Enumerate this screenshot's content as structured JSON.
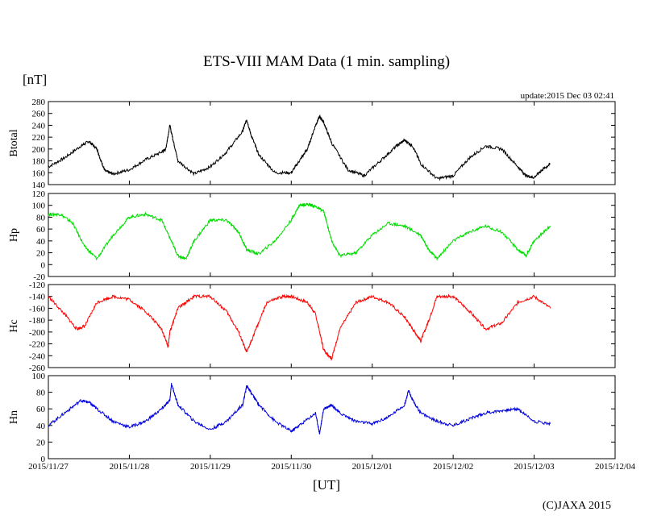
{
  "chart_data": {
    "type": "line",
    "title": "ETS-VIII MAM Data (1 min. sampling)",
    "unit_label": "[nT]",
    "update_text": "update:2015 Dec 03 02:41",
    "xlabel": "[UT]",
    "copyright": "(C)JAXA 2015",
    "x_tick_labels": [
      "2015/11/27",
      "2015/11/28",
      "2015/11/29",
      "2015/11/30",
      "2015/12/01",
      "2015/12/02",
      "2015/12/03",
      "2015/12/04"
    ],
    "x_unit": "days from 2015/11/27 00:00 UT",
    "xlim": [
      0,
      7
    ],
    "grid": false,
    "panels": [
      {
        "name": "Btotal",
        "color": "#000000",
        "ylim": [
          140,
          280
        ],
        "yticks": [
          140,
          160,
          180,
          200,
          220,
          240,
          260,
          280
        ],
        "x": [
          0.0,
          0.2,
          0.4,
          0.5,
          0.6,
          0.65,
          0.7,
          0.8,
          1.0,
          1.2,
          1.4,
          1.45,
          1.5,
          1.55,
          1.6,
          1.8,
          2.0,
          2.2,
          2.4,
          2.45,
          2.5,
          2.6,
          2.8,
          3.0,
          3.1,
          3.2,
          3.3,
          3.35,
          3.4,
          3.5,
          3.7,
          3.9,
          4.1,
          4.3,
          4.4,
          4.5,
          4.6,
          4.8,
          5.0,
          5.2,
          5.4,
          5.6,
          5.8,
          5.9,
          6.0,
          6.1,
          6.2
        ],
        "y": [
          170,
          185,
          205,
          213,
          200,
          180,
          163,
          158,
          165,
          182,
          195,
          200,
          240,
          210,
          180,
          158,
          170,
          195,
          230,
          250,
          225,
          190,
          160,
          160,
          180,
          200,
          240,
          255,
          245,
          210,
          165,
          155,
          180,
          205,
          215,
          205,
          175,
          150,
          155,
          185,
          205,
          200,
          170,
          155,
          152,
          165,
          175
        ]
      },
      {
        "name": "Hp",
        "color": "#00dd00",
        "ylim": [
          -20,
          120
        ],
        "yticks": [
          -20,
          0,
          20,
          40,
          60,
          80,
          100,
          120
        ],
        "x": [
          0.0,
          0.15,
          0.3,
          0.45,
          0.6,
          0.8,
          1.0,
          1.2,
          1.4,
          1.5,
          1.6,
          1.7,
          1.8,
          2.0,
          2.2,
          2.35,
          2.45,
          2.6,
          2.8,
          3.0,
          3.1,
          3.2,
          3.3,
          3.4,
          3.5,
          3.6,
          3.8,
          4.0,
          4.2,
          4.4,
          4.6,
          4.7,
          4.8,
          5.0,
          5.2,
          5.4,
          5.6,
          5.8,
          5.9,
          6.0,
          6.2
        ],
        "y": [
          85,
          85,
          70,
          30,
          10,
          50,
          80,
          85,
          75,
          45,
          15,
          10,
          40,
          75,
          75,
          55,
          25,
          18,
          40,
          75,
          100,
          102,
          98,
          90,
          40,
          15,
          20,
          50,
          70,
          65,
          50,
          25,
          10,
          40,
          55,
          65,
          55,
          25,
          15,
          40,
          65
        ]
      },
      {
        "name": "Hc",
        "color": "#ff0000",
        "ylim": [
          -260,
          -120
        ],
        "yticks": [
          -260,
          -240,
          -220,
          -200,
          -180,
          -160,
          -140,
          -120
        ],
        "x": [
          0.0,
          0.2,
          0.35,
          0.45,
          0.6,
          0.8,
          1.0,
          1.2,
          1.4,
          1.48,
          1.5,
          1.6,
          1.8,
          2.0,
          2.2,
          2.35,
          2.45,
          2.55,
          2.7,
          2.9,
          3.0,
          3.2,
          3.3,
          3.4,
          3.5,
          3.6,
          3.8,
          4.0,
          4.2,
          4.4,
          4.5,
          4.6,
          4.7,
          4.8,
          5.0,
          5.2,
          5.4,
          5.6,
          5.8,
          6.0,
          6.2
        ],
        "y": [
          -140,
          -170,
          -195,
          -190,
          -150,
          -140,
          -145,
          -165,
          -195,
          -225,
          -200,
          -160,
          -140,
          -140,
          -165,
          -200,
          -235,
          -200,
          -150,
          -140,
          -140,
          -150,
          -170,
          -230,
          -245,
          -195,
          -150,
          -140,
          -150,
          -175,
          -195,
          -215,
          -180,
          -140,
          -140,
          -165,
          -195,
          -185,
          -150,
          -140,
          -160
        ]
      },
      {
        "name": "Hn",
        "color": "#0000dd",
        "ylim": [
          0,
          100
        ],
        "yticks": [
          0,
          20,
          40,
          60,
          80,
          100
        ],
        "x": [
          0.0,
          0.2,
          0.4,
          0.5,
          0.6,
          0.8,
          1.0,
          1.2,
          1.4,
          1.5,
          1.52,
          1.6,
          1.8,
          2.0,
          2.2,
          2.4,
          2.45,
          2.5,
          2.6,
          2.8,
          3.0,
          3.1,
          3.3,
          3.35,
          3.4,
          3.5,
          3.6,
          3.8,
          4.0,
          4.2,
          4.4,
          4.45,
          4.5,
          4.6,
          4.8,
          5.0,
          5.2,
          5.4,
          5.6,
          5.8,
          6.0,
          6.2
        ],
        "y": [
          40,
          55,
          70,
          68,
          60,
          45,
          38,
          45,
          60,
          70,
          90,
          65,
          45,
          35,
          45,
          65,
          88,
          80,
          65,
          45,
          33,
          40,
          55,
          30,
          60,
          65,
          55,
          45,
          42,
          50,
          65,
          82,
          70,
          55,
          45,
          40,
          48,
          55,
          58,
          60,
          45,
          42
        ]
      }
    ]
  }
}
